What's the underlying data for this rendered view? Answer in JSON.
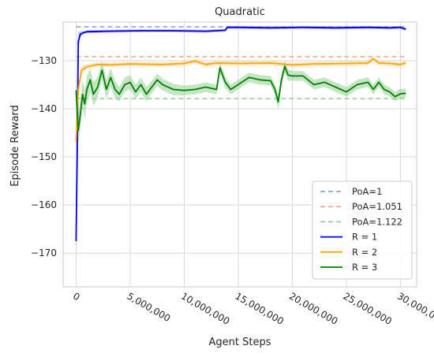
{
  "chart_data": {
    "type": "line",
    "title": "Quadratic",
    "xlabel": "Agent Steps",
    "ylabel": "Episode Reward",
    "xlim": [
      -1200000,
      31500000
    ],
    "ylim": [
      -177,
      -122
    ],
    "x_ticks": [
      0,
      5000000,
      10000000,
      15000000,
      20000000,
      25000000,
      30000000
    ],
    "x_tick_labels": [
      "0",
      "5,000,000",
      "10,000,000",
      "15,000,000",
      "20,000,000",
      "25,000,000",
      "30,000,000"
    ],
    "y_ticks": [
      -170,
      -160,
      -150,
      -140,
      -130
    ],
    "y_tick_labels": [
      "−170",
      "−160",
      "−150",
      "−140",
      "−130"
    ],
    "grid": true,
    "legend_position": "lower-right",
    "reference_lines": [
      {
        "name": "PoA=1",
        "value": -123.0,
        "color": "#8fa6d6"
      },
      {
        "name": "PoA=1.051",
        "value": -129.2,
        "color": "#f0b08c"
      },
      {
        "name": "PoA=1.122",
        "value": -137.9,
        "color": "#94cc9c"
      }
    ],
    "series": [
      {
        "name": "R = 1",
        "color": "#0000e6",
        "band_color": "#9a9aee",
        "x": [
          0,
          100000,
          200000,
          400000,
          700000,
          1000000,
          3000000,
          6000000,
          9000000,
          12000000,
          13800000,
          14000000,
          15000000,
          18000000,
          21000000,
          24000000,
          27000000,
          29000000,
          30000000,
          30500000
        ],
        "y": [
          -167.5,
          -150,
          -126,
          -124.5,
          -124.2,
          -124.0,
          -123.9,
          -123.8,
          -123.8,
          -123.9,
          -123.7,
          -123.1,
          -123.1,
          -123.2,
          -123.1,
          -123.2,
          -123.1,
          -123.2,
          -123.1,
          -123.5
        ],
        "band": [
          4.5,
          5,
          2,
          0.6,
          0.3,
          0.3,
          0.3,
          0.3,
          0.3,
          0.3,
          0.3,
          0.3,
          0.3,
          0.3,
          0.3,
          0.3,
          0.3,
          0.3,
          0.3,
          0.3
        ]
      },
      {
        "name": "R = 2",
        "color": "#ffa500",
        "band_color": "#ffd9a6",
        "x": [
          0,
          200000,
          500000,
          1000000,
          2000000,
          3000000,
          5000000,
          8000000,
          10000000,
          11000000,
          12000000,
          13000000,
          15000000,
          18000000,
          20000000,
          22000000,
          25000000,
          27000000,
          27500000,
          28000000,
          29000000,
          30000000,
          30500000
        ],
        "y": [
          -147,
          -136,
          -132,
          -131.3,
          -130.8,
          -130.9,
          -130.7,
          -130.8,
          -130.6,
          -130.1,
          -130.8,
          -130.5,
          -130.6,
          -130.5,
          -130.9,
          -130.7,
          -130.6,
          -130.5,
          -129.6,
          -130.5,
          -130.6,
          -130.8,
          -130.5
        ],
        "band": [
          2.5,
          2,
          1,
          0.5,
          0.5,
          0.5,
          0.5,
          0.5,
          0.5,
          0.5,
          0.5,
          0.5,
          0.5,
          0.5,
          0.5,
          0.5,
          0.5,
          0.5,
          0.5,
          0.5,
          0.5,
          0.5,
          0.5
        ]
      },
      {
        "name": "R = 3",
        "color": "#008000",
        "band_color": "#9ed49e",
        "x": [
          0,
          200000,
          400000,
          600000,
          800000,
          1000000,
          1300000,
          1600000,
          2000000,
          2400000,
          2800000,
          3200000,
          3600000,
          4000000,
          4500000,
          5000000,
          5500000,
          6000000,
          6500000,
          7000000,
          7500000,
          8000000,
          9000000,
          10000000,
          11000000,
          12000000,
          13000000,
          13300000,
          13800000,
          14300000,
          15000000,
          16000000,
          17000000,
          18000000,
          18400000,
          18700000,
          19000000,
          19300000,
          19600000,
          20000000,
          21000000,
          22000000,
          23000000,
          24000000,
          25000000,
          26000000,
          27000000,
          27500000,
          28000000,
          28500000,
          29000000,
          29500000,
          30000000,
          30500000
        ],
        "y": [
          -136.2,
          -144.5,
          -141,
          -137,
          -139,
          -136,
          -134,
          -137,
          -135.5,
          -132,
          -136,
          -133.5,
          -136,
          -137,
          -135,
          -134.5,
          -136.5,
          -135,
          -137,
          -135.5,
          -134,
          -135,
          -136,
          -136.2,
          -136.0,
          -135.5,
          -136,
          -131.5,
          -134.5,
          -136,
          -135,
          -133.5,
          -134,
          -134.2,
          -136,
          -138.6,
          -134,
          -131.2,
          -133,
          -133.2,
          -133.2,
          -135,
          -134.5,
          -135.5,
          -136.5,
          -135,
          -134.5,
          -136,
          -134.5,
          -136,
          -136.5,
          -137.5,
          -136.9,
          -136.8
        ],
        "band": [
          1.5,
          3,
          3,
          3,
          3,
          2.8,
          2.5,
          2.5,
          2.2,
          2,
          2,
          2,
          1.8,
          1.5,
          1.5,
          1.5,
          1.5,
          1.5,
          1.5,
          1.3,
          1.3,
          1.2,
          1.2,
          1,
          1,
          1,
          1,
          1.2,
          1.2,
          1,
          1,
          1,
          1,
          1,
          1.2,
          1.5,
          1.3,
          1.3,
          1.2,
          1,
          1,
          1,
          1,
          1,
          1,
          1,
          1,
          1,
          1,
          1,
          1,
          1,
          1,
          1
        ]
      }
    ]
  }
}
